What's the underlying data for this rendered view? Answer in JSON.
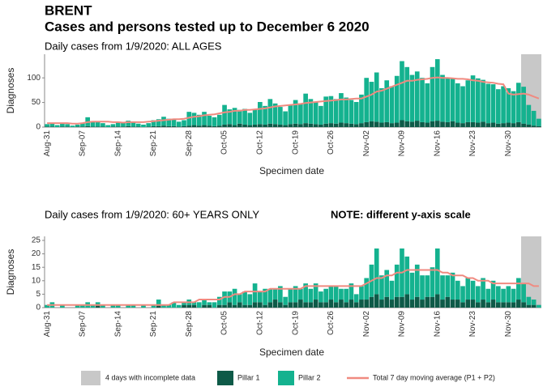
{
  "header": {
    "title": "BRENT",
    "subtitle": "Cases and persons tested up to December  6 2020"
  },
  "incomplete": {
    "label": "4 days with incomplete data",
    "days": 4,
    "color": "#c8c8c8"
  },
  "chart_data": [
    {
      "type": "bar",
      "subtitle": "Daily cases from 1/9/2020: ALL AGES",
      "xlabel": "Specimen date",
      "ylabel": "Diagnoses",
      "categories": [
        "Aug-31",
        null,
        null,
        null,
        null,
        null,
        null,
        "Sep-07",
        null,
        null,
        null,
        null,
        null,
        null,
        "Sep-14",
        null,
        null,
        null,
        null,
        null,
        null,
        "Sep-21",
        null,
        null,
        null,
        null,
        null,
        null,
        "Sep-28",
        null,
        null,
        null,
        null,
        null,
        null,
        "Oct-05",
        null,
        null,
        null,
        null,
        null,
        null,
        "Oct-12",
        null,
        null,
        null,
        null,
        null,
        null,
        "Oct-19",
        null,
        null,
        null,
        null,
        null,
        null,
        "Oct-26",
        null,
        null,
        null,
        null,
        null,
        null,
        "Nov-02",
        null,
        null,
        null,
        null,
        null,
        null,
        "Nov-09",
        null,
        null,
        null,
        null,
        null,
        null,
        "Nov-16",
        null,
        null,
        null,
        null,
        null,
        null,
        "Nov-23",
        null,
        null,
        null,
        null,
        null,
        null,
        "Nov-30",
        null,
        null,
        null,
        null,
        null,
        null
      ],
      "ylim": [
        0,
        148
      ],
      "yticks": [
        0,
        50,
        100
      ],
      "series": [
        {
          "name": "Pillar 1",
          "color": "#0e5a48",
          "values": [
            1,
            1,
            0,
            1,
            1,
            0,
            1,
            1,
            2,
            1,
            1,
            1,
            0,
            1,
            1,
            1,
            2,
            1,
            1,
            0,
            1,
            2,
            2,
            3,
            2,
            2,
            1,
            2,
            3,
            4,
            3,
            4,
            3,
            2,
            3,
            5,
            6,
            4,
            7,
            5,
            4,
            5,
            6,
            5,
            7,
            6,
            5,
            4,
            6,
            7,
            6,
            8,
            7,
            6,
            5,
            7,
            8,
            7,
            9,
            8,
            7,
            6,
            8,
            10,
            12,
            11,
            9,
            10,
            8,
            9,
            14,
            12,
            11,
            13,
            10,
            9,
            12,
            13,
            11,
            10,
            12,
            9,
            8,
            10,
            10,
            9,
            11,
            8,
            9,
            7,
            8,
            9,
            8,
            10,
            7,
            5,
            3,
            2
          ]
        },
        {
          "name": "Pillar 2",
          "color": "#14b28f",
          "values": [
            5,
            6,
            4,
            7,
            5,
            3,
            4,
            8,
            18,
            10,
            9,
            7,
            4,
            5,
            9,
            8,
            11,
            10,
            6,
            5,
            7,
            12,
            14,
            18,
            15,
            13,
            10,
            12,
            28,
            25,
            22,
            27,
            20,
            18,
            22,
            40,
            30,
            35,
            28,
            32,
            25,
            30,
            45,
            38,
            50,
            42,
            36,
            28,
            40,
            48,
            42,
            60,
            50,
            45,
            38,
            55,
            55,
            50,
            60,
            52,
            48,
            45,
            58,
            90,
            80,
            100,
            70,
            85,
            75,
            95,
            120,
            110,
            95,
            100,
            90,
            80,
            110,
            125,
            95,
            90,
            88,
            80,
            75,
            85,
            95,
            90,
            85,
            80,
            78,
            70,
            75,
            70,
            65,
            80,
            75,
            40,
            30,
            15
          ]
        },
        {
          "name": "Total 7 day moving average (P1 + P2)",
          "type": "line",
          "color": "#f08a80",
          "values": [
            8,
            8,
            8,
            8,
            8,
            7,
            7,
            8,
            10,
            11,
            11,
            11,
            11,
            10,
            10,
            9,
            10,
            10,
            10,
            10,
            11,
            12,
            13,
            14,
            15,
            16,
            16,
            17,
            19,
            21,
            22,
            24,
            25,
            26,
            28,
            30,
            31,
            33,
            33,
            35,
            35,
            36,
            37,
            38,
            40,
            42,
            43,
            44,
            45,
            46,
            47,
            49,
            50,
            51,
            52,
            53,
            54,
            55,
            56,
            56,
            57,
            58,
            58,
            62,
            66,
            72,
            74,
            78,
            82,
            86,
            90,
            94,
            94,
            96,
            97,
            98,
            100,
            101,
            100,
            100,
            99,
            98,
            98,
            97,
            95,
            94,
            92,
            91,
            90,
            88,
            87,
            68,
            66,
            67,
            68,
            66,
            62,
            58
          ]
        }
      ]
    },
    {
      "type": "bar",
      "subtitle": "Daily cases from 1/9/2020: 60+ YEARS ONLY",
      "note": "NOTE: different y-axis scale",
      "xlabel": "Specimen date",
      "ylabel": "Diagnoses",
      "categories": [
        "Aug-31",
        null,
        null,
        null,
        null,
        null,
        null,
        "Sep-07",
        null,
        null,
        null,
        null,
        null,
        null,
        "Sep-14",
        null,
        null,
        null,
        null,
        null,
        null,
        "Sep-21",
        null,
        null,
        null,
        null,
        null,
        null,
        "Sep-28",
        null,
        null,
        null,
        null,
        null,
        null,
        "Oct-05",
        null,
        null,
        null,
        null,
        null,
        null,
        "Oct-12",
        null,
        null,
        null,
        null,
        null,
        null,
        "Oct-19",
        null,
        null,
        null,
        null,
        null,
        null,
        "Oct-26",
        null,
        null,
        null,
        null,
        null,
        null,
        "Nov-02",
        null,
        null,
        null,
        null,
        null,
        null,
        "Nov-09",
        null,
        null,
        null,
        null,
        null,
        null,
        "Nov-16",
        null,
        null,
        null,
        null,
        null,
        null,
        "Nov-23",
        null,
        null,
        null,
        null,
        null,
        null,
        "Nov-30",
        null,
        null,
        null,
        null,
        null,
        null
      ],
      "ylim": [
        0,
        26.5
      ],
      "yticks": [
        0,
        5,
        10,
        15,
        20,
        25
      ],
      "series": [
        {
          "color": "#0e5a48",
          "values": [
            0,
            0,
            0,
            0,
            0,
            0,
            0,
            0,
            0,
            0,
            1,
            0,
            0,
            0,
            0,
            0,
            0,
            0,
            0,
            0,
            0,
            0,
            1,
            0,
            0,
            0,
            0,
            1,
            1,
            1,
            0,
            1,
            1,
            0,
            1,
            1,
            2,
            1,
            2,
            1,
            1,
            2,
            2,
            1,
            2,
            3,
            2,
            1,
            2,
            2,
            3,
            2,
            2,
            3,
            2,
            2,
            3,
            2,
            3,
            2,
            3,
            2,
            3,
            3,
            4,
            5,
            3,
            4,
            3,
            4,
            4,
            5,
            3,
            4,
            3,
            4,
            4,
            5,
            3,
            4,
            3,
            3,
            2,
            3,
            3,
            2,
            3,
            2,
            3,
            2,
            2,
            2,
            2,
            3,
            2,
            1,
            1,
            0
          ]
        },
        {
          "color": "#14b28f",
          "values": [
            1,
            2,
            0,
            1,
            0,
            0,
            1,
            1,
            2,
            1,
            1,
            1,
            0,
            1,
            1,
            0,
            1,
            1,
            0,
            1,
            0,
            1,
            2,
            1,
            1,
            2,
            1,
            1,
            2,
            1,
            2,
            2,
            1,
            2,
            3,
            5,
            4,
            6,
            3,
            5,
            4,
            7,
            4,
            6,
            5,
            4,
            6,
            3,
            5,
            6,
            4,
            7,
            5,
            6,
            4,
            5,
            5,
            6,
            4,
            5,
            6,
            3,
            5,
            8,
            12,
            17,
            9,
            10,
            7,
            12,
            18,
            14,
            10,
            12,
            9,
            8,
            11,
            17,
            9,
            8,
            10,
            7,
            6,
            8,
            7,
            6,
            8,
            5,
            7,
            6,
            5,
            6,
            5,
            8,
            7,
            3,
            2,
            1
          ]
        },
        {
          "type": "line",
          "color": "#f08a80",
          "values": [
            1,
            1,
            1,
            1,
            1,
            1,
            1,
            1,
            1,
            1,
            1,
            1,
            1,
            1,
            1,
            1,
            1,
            1,
            1,
            1,
            1,
            1,
            1,
            1,
            1,
            2,
            2,
            2,
            2,
            2,
            3,
            3,
            3,
            3,
            3,
            4,
            4,
            5,
            5,
            6,
            6,
            6,
            6,
            6,
            7,
            7,
            7,
            7,
            7,
            7,
            7,
            8,
            8,
            8,
            8,
            8,
            8,
            8,
            8,
            8,
            8,
            8,
            8,
            9,
            10,
            11,
            11,
            12,
            12,
            13,
            13,
            14,
            14,
            14,
            14,
            14,
            14,
            14,
            13,
            13,
            12,
            12,
            12,
            11,
            11,
            10,
            10,
            10,
            9,
            9,
            9,
            9,
            9,
            9,
            9,
            9,
            8,
            8
          ]
        }
      ]
    }
  ]
}
